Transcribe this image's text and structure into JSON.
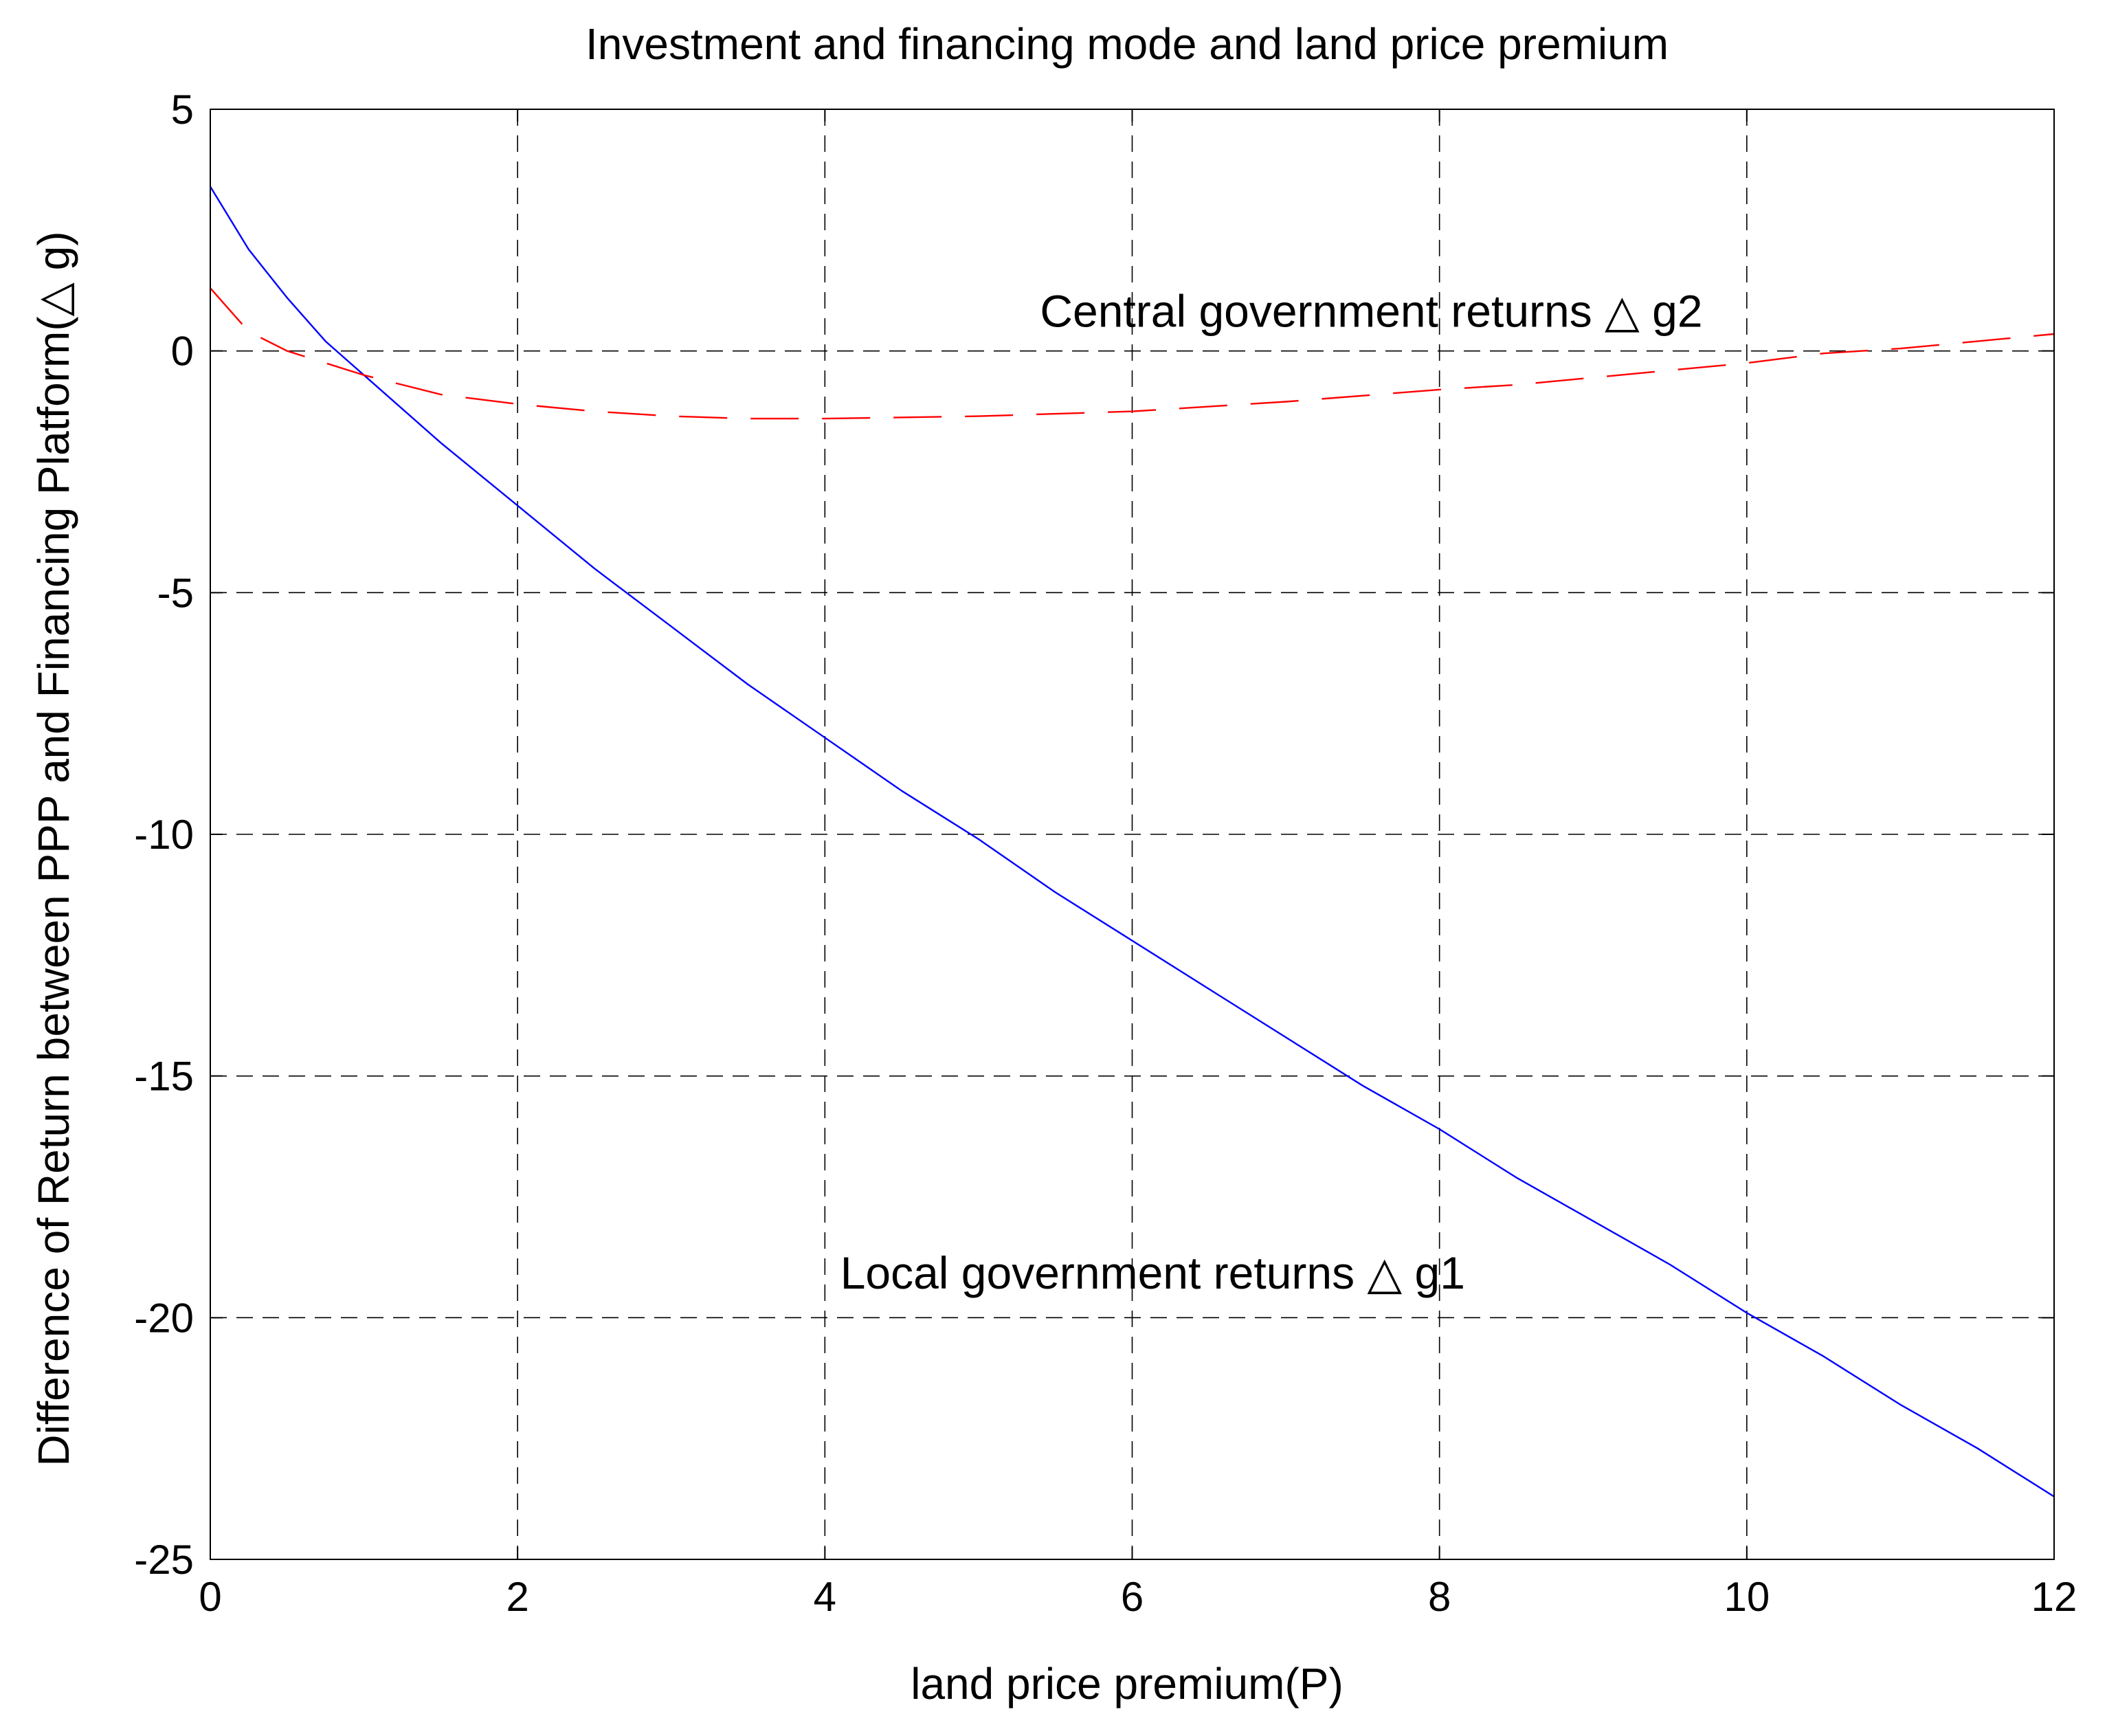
{
  "chart_data": {
    "type": "line",
    "title": "Investment and financing mode and land price premium",
    "xlabel": "land price premium(P)",
    "ylabel": "Difference of Return between PPP and Financing Platform(△ g)",
    "xlim": [
      0,
      12
    ],
    "ylim": [
      -25,
      5
    ],
    "xticks": [
      0,
      2,
      4,
      6,
      8,
      10,
      12
    ],
    "yticks": [
      5,
      0,
      -5,
      -10,
      -15,
      -20,
      -25
    ],
    "grid": true,
    "legend": "none",
    "series": [
      {
        "color": "#0000ff",
        "line_style": "solid",
        "x": [
          0,
          0.25,
          0.5,
          0.75,
          1,
          1.5,
          2,
          2.5,
          3,
          3.5,
          4,
          4.5,
          5,
          5.5,
          6,
          6.5,
          7,
          7.5,
          8,
          8.5,
          9,
          9.5,
          10,
          10.5,
          11,
          11.5,
          12
        ],
        "y": [
          3.4,
          2.1,
          1.1,
          0.2,
          -0.5,
          -1.9,
          -3.2,
          -4.5,
          -5.7,
          -6.9,
          -8.0,
          -9.1,
          -10.1,
          -11.2,
          -12.2,
          -13.2,
          -14.2,
          -15.2,
          -16.1,
          -17.1,
          -18.0,
          -18.9,
          -19.9,
          -20.8,
          -21.8,
          -22.7,
          -23.7
        ]
      },
      {
        "color": "#ff0000",
        "line_style": "dashed",
        "x": [
          0,
          0.25,
          0.5,
          1,
          1.5,
          2,
          2.5,
          3,
          3.5,
          4,
          5,
          6,
          7,
          8,
          8.5,
          9,
          9.5,
          10,
          10.5,
          11,
          11.5,
          12
        ],
        "y": [
          1.3,
          0.4,
          0.0,
          -0.5,
          -0.9,
          -1.1,
          -1.25,
          -1.35,
          -1.4,
          -1.4,
          -1.35,
          -1.25,
          -1.05,
          -0.8,
          -0.7,
          -0.55,
          -0.4,
          -0.25,
          -0.05,
          0.05,
          0.2,
          0.35
        ]
      }
    ],
    "annotations": [
      {
        "text": "Central government returns △  g2",
        "x": 5.4,
        "y": 0.5
      },
      {
        "text": "Local government returns △  g1",
        "x": 4.1,
        "y": -19.4
      }
    ],
    "colors": {
      "background": "#ffffff",
      "axes": "#000000"
    }
  }
}
